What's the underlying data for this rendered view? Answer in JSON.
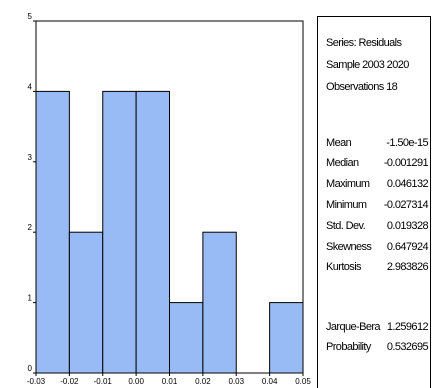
{
  "chart_data": {
    "type": "bar",
    "bin_edges": [
      -0.03,
      -0.02,
      -0.01,
      0.0,
      0.01,
      0.02,
      0.03,
      0.04,
      0.05
    ],
    "values": [
      4,
      2,
      4,
      4,
      1,
      2,
      0,
      1
    ],
    "x_tick_labels": [
      "-0.03",
      "-0.02",
      "-0.01",
      "0.00",
      "0.01",
      "0.02",
      "0.03",
      "0.04",
      "0.05"
    ],
    "y_ticks": [
      0,
      1,
      2,
      3,
      4,
      5
    ],
    "ylim": [
      0,
      5
    ],
    "xlim": [
      -0.03,
      0.05
    ],
    "bar_color": "#99bbf5",
    "title": "",
    "xlabel": "",
    "ylabel": ""
  },
  "stats": {
    "series": "Series: Residuals",
    "sample": "Sample 2003 2020",
    "observations": "Observations 18",
    "rows": [
      {
        "label": "Mean",
        "value": "-1.50e-15"
      },
      {
        "label": "Median",
        "value": "-0.001291"
      },
      {
        "label": "Maximum",
        "value": "0.046132"
      },
      {
        "label": "Minimum",
        "value": "-0.027314"
      },
      {
        "label": "Std. Dev.",
        "value": "0.019328"
      },
      {
        "label": "Skewness",
        "value": "0.647924"
      },
      {
        "label": "Kurtosis",
        "value": "2.983826"
      }
    ],
    "test_rows": [
      {
        "label": "Jarque-Bera",
        "value": "1.259612"
      },
      {
        "label": "Probability",
        "value": "0.532695"
      }
    ]
  }
}
